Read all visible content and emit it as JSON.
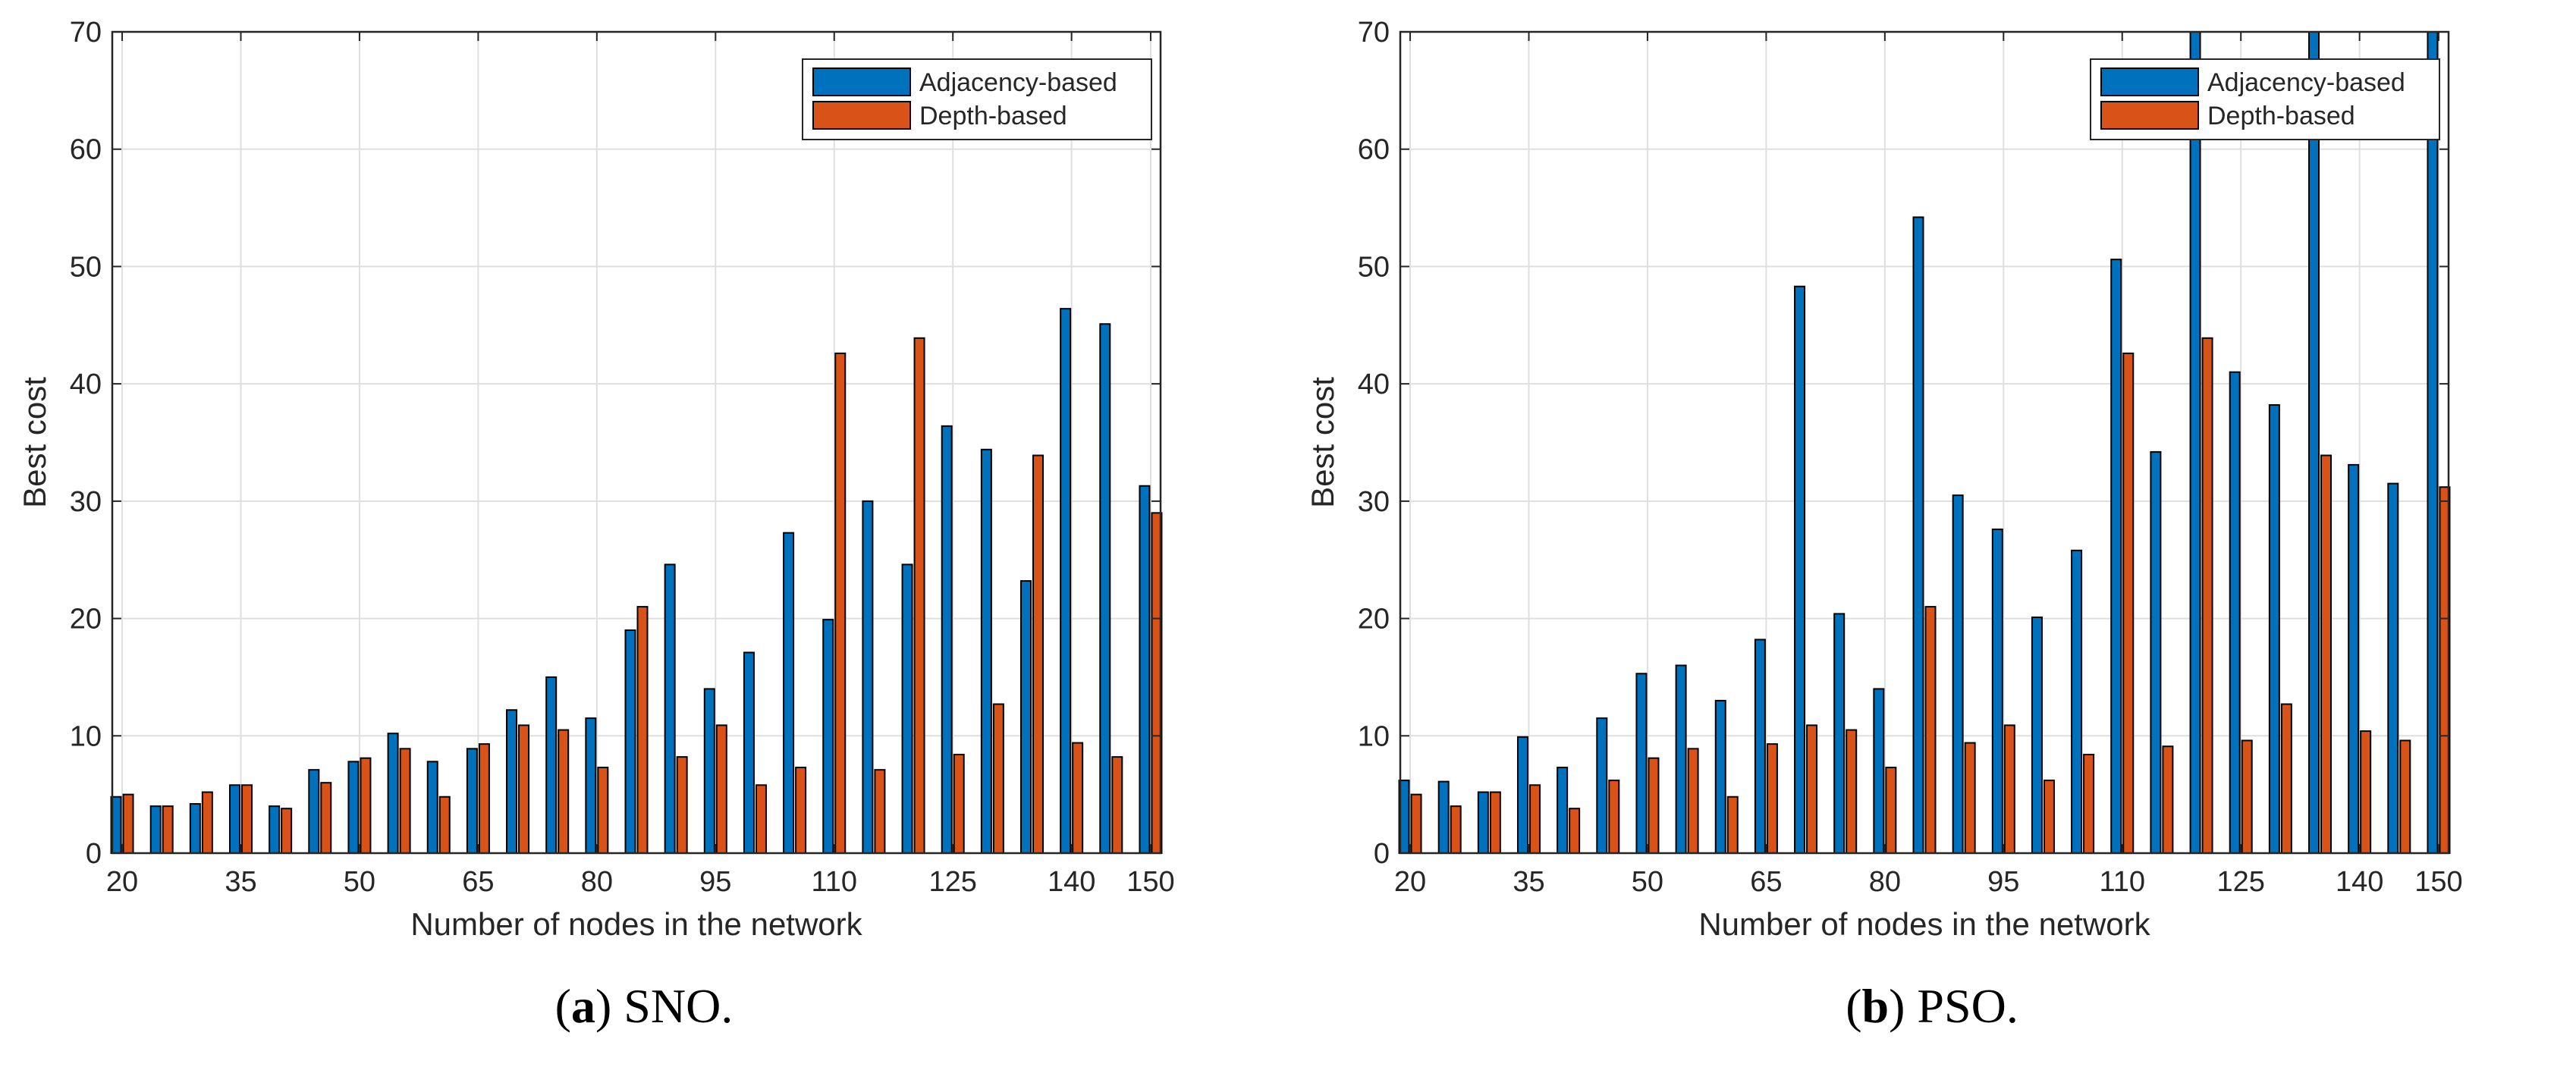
{
  "chart_data": [
    {
      "type": "bar",
      "caption_letter": "a",
      "caption_text": "SNO.",
      "xlabel": "Number of nodes in the network",
      "ylabel": "Best cost",
      "ylim": [
        0,
        70
      ],
      "yticks": [
        0,
        10,
        20,
        30,
        40,
        50,
        60,
        70
      ],
      "xlim": [
        18.75,
        151.25
      ],
      "xticks": [
        20,
        35,
        50,
        65,
        80,
        95,
        110,
        125,
        140,
        150
      ],
      "grid": true,
      "legend_position": "top-right",
      "categories": [
        20,
        25,
        30,
        35,
        40,
        45,
        50,
        55,
        60,
        65,
        70,
        75,
        80,
        85,
        90,
        95,
        100,
        105,
        110,
        115,
        120,
        125,
        130,
        135,
        140,
        145,
        150
      ],
      "series": [
        {
          "name": "Adjacency-based",
          "color": "#0072BD",
          "values": [
            4.8,
            4.0,
            4.2,
            5.8,
            4.0,
            7.1,
            7.8,
            10.2,
            7.8,
            8.9,
            12.2,
            15.0,
            11.5,
            19.0,
            24.6,
            14.0,
            17.1,
            27.3,
            19.9,
            30.0,
            24.6,
            36.4,
            34.4,
            23.2,
            46.4,
            45.1,
            31.3
          ]
        },
        {
          "name": "Depth-based",
          "color": "#D95319",
          "values": [
            5.0,
            4.0,
            5.2,
            5.8,
            3.8,
            6.0,
            8.1,
            8.9,
            4.8,
            9.3,
            10.9,
            10.5,
            7.3,
            21.0,
            8.2,
            10.9,
            5.8,
            7.3,
            42.6,
            7.1,
            43.9,
            8.4,
            12.7,
            33.9,
            9.4,
            8.2,
            29.0
          ]
        }
      ]
    },
    {
      "type": "bar",
      "caption_letter": "b",
      "caption_text": "PSO.",
      "xlabel": "Number of nodes in the network",
      "ylabel": "Best cost",
      "ylim": [
        0,
        70
      ],
      "yticks": [
        0,
        10,
        20,
        30,
        40,
        50,
        60,
        70
      ],
      "xlim": [
        18.75,
        151.25
      ],
      "xticks": [
        20,
        35,
        50,
        65,
        80,
        95,
        110,
        125,
        140,
        150
      ],
      "grid": true,
      "legend_position": "top-right",
      "categories": [
        20,
        25,
        30,
        35,
        40,
        45,
        50,
        55,
        60,
        65,
        70,
        75,
        80,
        85,
        90,
        95,
        100,
        105,
        110,
        115,
        120,
        125,
        130,
        135,
        140,
        145,
        150
      ],
      "series": [
        {
          "name": "Adjacency-based",
          "color": "#0072BD",
          "values": [
            6.2,
            6.1,
            5.2,
            9.9,
            7.3,
            11.5,
            15.3,
            16.0,
            13.0,
            18.2,
            48.3,
            20.4,
            14.0,
            54.2,
            30.5,
            27.6,
            20.1,
            25.8,
            50.6,
            34.2,
            70,
            41.0,
            38.2,
            70,
            33.1,
            31.5,
            70
          ]
        },
        {
          "name": "Depth-based",
          "color": "#D95319",
          "values": [
            5.0,
            4.0,
            5.2,
            5.8,
            3.8,
            6.2,
            8.1,
            8.9,
            4.8,
            9.3,
            10.9,
            10.5,
            7.3,
            21.0,
            9.4,
            10.9,
            6.2,
            8.4,
            42.6,
            9.1,
            43.9,
            9.6,
            12.7,
            33.9,
            10.4,
            9.6,
            31.2
          ]
        }
      ]
    }
  ]
}
